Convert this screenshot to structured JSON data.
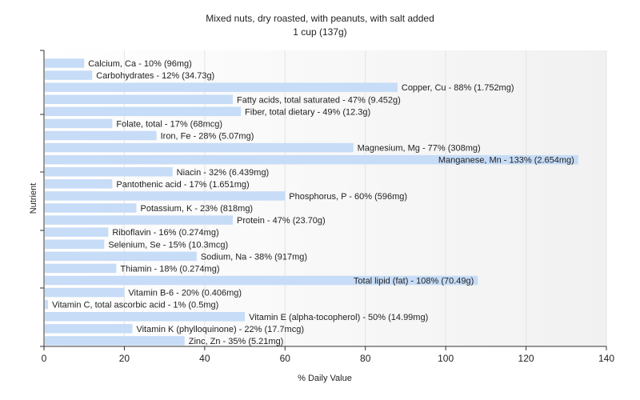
{
  "chart_data": {
    "type": "bar",
    "orientation": "horizontal",
    "title": "Mixed nuts, dry roasted, with peanuts, with salt added",
    "subtitle": "1 cup (137g)",
    "xlabel": "% Daily Value",
    "ylabel": "Nutrient",
    "xlim": [
      0,
      140
    ],
    "xticks": [
      0,
      20,
      40,
      60,
      80,
      100,
      120,
      140
    ],
    "grid": true,
    "bar_color": "#c6dcf7",
    "categories": [
      "Calcium, Ca",
      "Carbohydrates",
      "Copper, Cu",
      "Fatty acids, total saturated",
      "Fiber, total dietary",
      "Folate, total",
      "Iron, Fe",
      "Magnesium, Mg",
      "Manganese, Mn",
      "Niacin",
      "Pantothenic acid",
      "Phosphorus, P",
      "Potassium, K",
      "Protein",
      "Riboflavin",
      "Selenium, Se",
      "Sodium, Na",
      "Thiamin",
      "Total lipid (fat)",
      "Vitamin B-6",
      "Vitamin C, total ascorbic acid",
      "Vitamin E (alpha-tocopherol)",
      "Vitamin K (phylloquinone)",
      "Zinc, Zn"
    ],
    "values": [
      10,
      12,
      88,
      47,
      49,
      17,
      28,
      77,
      133,
      32,
      17,
      60,
      23,
      47,
      16,
      15,
      38,
      18,
      108,
      20,
      1,
      50,
      22,
      35
    ],
    "labels": [
      "Calcium, Ca - 10% (96mg)",
      "Carbohydrates - 12% (34.73g)",
      "Copper, Cu - 88% (1.752mg)",
      "Fatty acids, total saturated - 47% (9.452g)",
      "Fiber, total dietary - 49% (12.3g)",
      "Folate, total - 17% (68mcg)",
      "Iron, Fe - 28% (5.07mg)",
      "Magnesium, Mg - 77% (308mg)",
      "Manganese, Mn - 133% (2.654mg)",
      "Niacin - 32% (6.439mg)",
      "Pantothenic acid - 17% (1.651mg)",
      "Phosphorus, P - 60% (596mg)",
      "Potassium, K - 23% (818mg)",
      "Protein - 47% (23.70g)",
      "Riboflavin - 16% (0.274mg)",
      "Selenium, Se - 15% (10.3mcg)",
      "Sodium, Na - 38% (917mg)",
      "Thiamin - 18% (0.274mg)",
      "Total lipid (fat) - 108% (70.49g)",
      "Vitamin B-6 - 20% (0.406mg)",
      "Vitamin C, total ascorbic acid - 1% (0.5mg)",
      "Vitamin E (alpha-tocopherol) - 50% (14.99mg)",
      "Vitamin K (phylloquinone) - 22% (17.7mcg)",
      "Zinc, Zn - 35% (5.21mg)"
    ]
  }
}
